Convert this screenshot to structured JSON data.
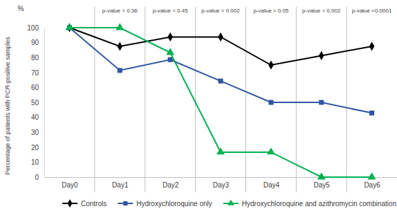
{
  "chart_data": {
    "type": "line",
    "y_label": "Percentage of patients with PCR-positive samples",
    "y_unit": "%",
    "categories": [
      "Day0",
      "Day1",
      "Day2",
      "Day3",
      "Day4",
      "Day5",
      "Day6"
    ],
    "series": [
      {
        "name": "Controls",
        "color": "#000000",
        "marker": "diamond",
        "values": [
          100,
          87.5,
          93.8,
          93.8,
          75,
          81.3,
          87.5
        ]
      },
      {
        "name": "Hydroxychloroquine only",
        "color": "#3055a0",
        "marker": "square",
        "values": [
          100,
          71.4,
          78.6,
          64.3,
          50,
          50,
          42.9
        ]
      },
      {
        "name": "Hydroxychloroquine and azithromycin combination",
        "color": "#00b050",
        "marker": "triangle",
        "values": [
          100,
          100,
          83.3,
          16.7,
          16.7,
          0,
          0
        ]
      }
    ],
    "annotations": [
      {
        "x": "Day1",
        "text": "p-value = 0.36"
      },
      {
        "x": "Day2",
        "text": "p-value = 0.45"
      },
      {
        "x": "Day3",
        "text": "p-value = 0.002"
      },
      {
        "x": "Day4",
        "text": "p-value = 0.05"
      },
      {
        "x": "Day5",
        "text": "p-value = 0.002"
      },
      {
        "x": "Day6",
        "text": "p-value <0.0001"
      }
    ],
    "ylim": [
      0,
      100
    ],
    "yticks": [
      0,
      10,
      20,
      30,
      40,
      50,
      60,
      70,
      80,
      90,
      100
    ],
    "grid": "x",
    "legend": "bottom"
  }
}
